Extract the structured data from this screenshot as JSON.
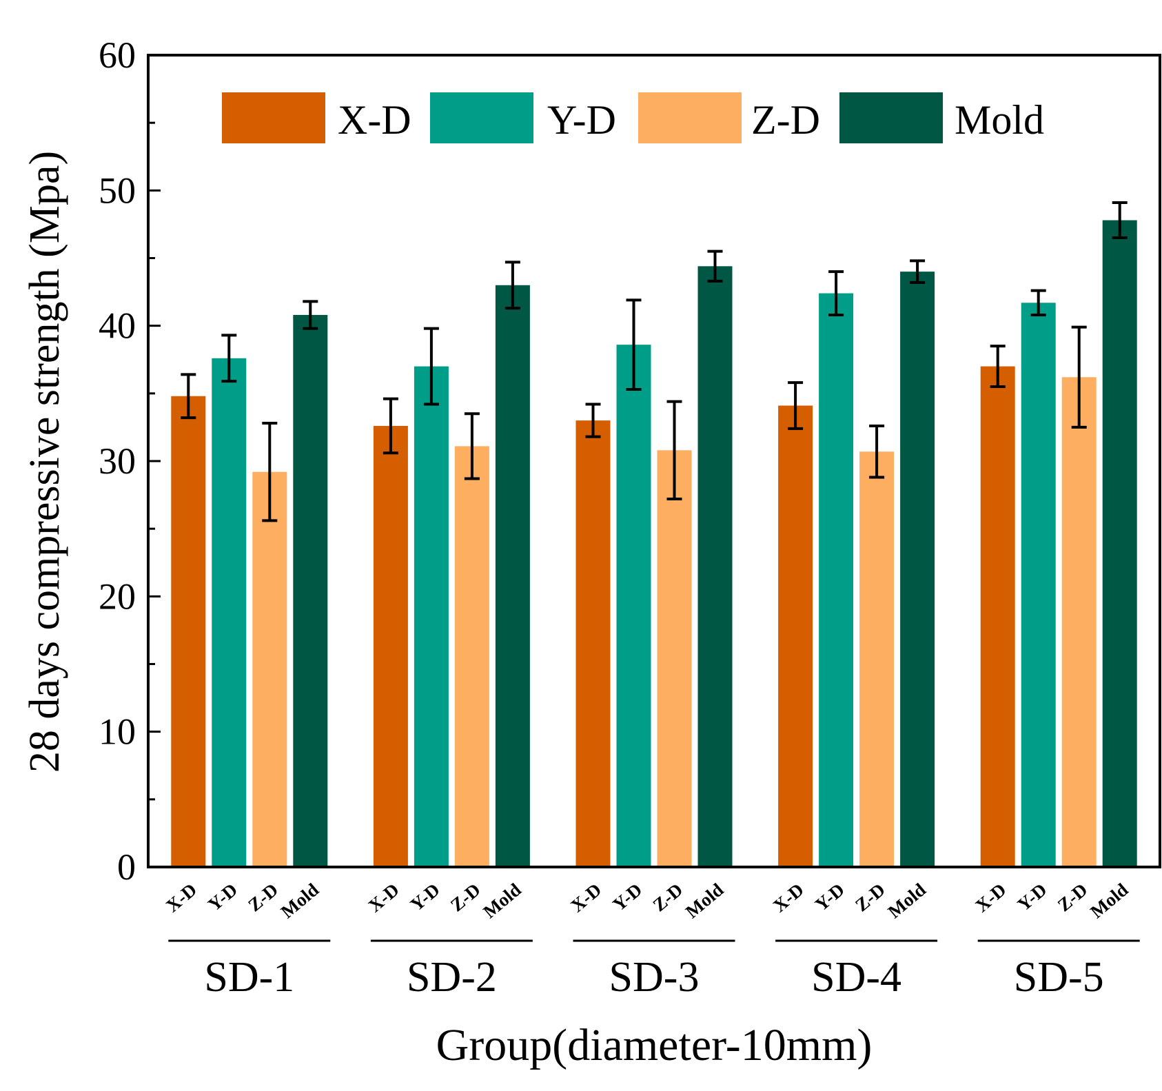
{
  "chart_data": {
    "type": "bar",
    "title": "",
    "xlabel": "Group(diameter-10mm)",
    "ylabel": "28 days compressive strength (Mpa)",
    "ylim": [
      0,
      60
    ],
    "yticks": [
      "0",
      "10",
      "20",
      "30",
      "40",
      "50",
      "60"
    ],
    "groups": [
      "SD-1",
      "SD-2",
      "SD-3",
      "SD-4",
      "SD-5"
    ],
    "sub_labels": [
      "X-D",
      "Y-D",
      "Z-D",
      "Mold"
    ],
    "legend": {
      "placement": "top",
      "entries": [
        "X-D",
        "Y-D",
        "Z-D",
        "Mold"
      ]
    },
    "series": [
      {
        "name": "X-D",
        "color": "#D55E00",
        "values": [
          34.8,
          32.6,
          33.0,
          34.1,
          37.0
        ],
        "errors": [
          1.6,
          2.0,
          1.2,
          1.7,
          1.5
        ]
      },
      {
        "name": "Y-D",
        "color": "#009E88",
        "values": [
          37.6,
          37.0,
          38.6,
          42.4,
          41.7
        ],
        "errors": [
          1.7,
          2.8,
          3.3,
          1.6,
          0.9
        ]
      },
      {
        "name": "Z-D",
        "color": "#FDAE61",
        "values": [
          29.2,
          31.1,
          30.8,
          30.7,
          36.2
        ],
        "errors": [
          3.6,
          2.4,
          3.6,
          1.9,
          3.7
        ]
      },
      {
        "name": "Mold",
        "color": "#005844",
        "values": [
          40.8,
          43.0,
          44.4,
          44.0,
          47.8
        ],
        "errors": [
          1.0,
          1.7,
          1.1,
          0.8,
          1.3
        ]
      }
    ]
  }
}
